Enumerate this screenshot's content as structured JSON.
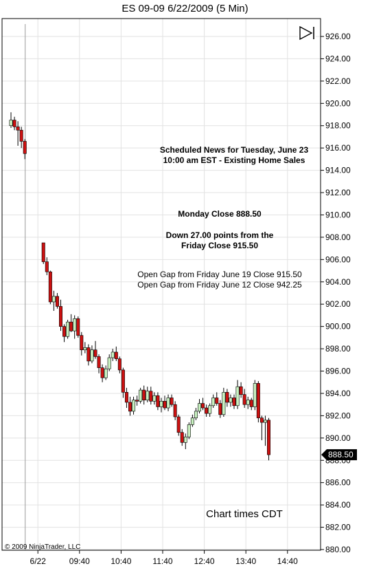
{
  "title": "ES 09-09  6/22/2009 (5 Min)",
  "copyright": "© 2009 NinjaTrader, LLC",
  "chart_times_note": "Chart times CDT",
  "last_price_label": "888.50",
  "annotations": {
    "news_line1": "Scheduled News for Tuesday, June 23",
    "news_line2": "10:00 am EST - Existing Home Sales",
    "monday_close": "Monday Close 888.50",
    "down_line1": "Down 27.00 points from the",
    "down_line2": "Friday Close 915.50",
    "gap_line1": "Open Gap from Friday June 19 Close 915.50",
    "gap_line2": "Open Gap from Friday June 12 Close 942.25"
  },
  "colors": {
    "up_candle": "#c8f0c0",
    "down_candle": "#cc1111",
    "grid": "#e2e2e2",
    "axis": "#000000",
    "price_tag_bg": "#000000",
    "price_tag_text": "#ffffff"
  },
  "chart_data": {
    "type": "candlestick",
    "title": "ES 09-09  6/22/2009 (5 Min)",
    "ylim": [
      880,
      927
    ],
    "yticks": [
      "926.00",
      "924.00",
      "922.00",
      "920.00",
      "918.00",
      "916.00",
      "914.00",
      "912.00",
      "910.00",
      "908.00",
      "906.00",
      "904.00",
      "902.00",
      "900.00",
      "898.00",
      "896.00",
      "894.00",
      "892.00",
      "890.00",
      "888.00",
      "886.00",
      "884.00",
      "882.00",
      "880.00"
    ],
    "xticks": [
      "6/22",
      "09:40",
      "10:40",
      "11:40",
      "12:40",
      "13:40",
      "14:40"
    ],
    "xtick_bar_index": [
      4,
      16,
      28,
      40,
      52,
      64,
      76
    ],
    "grid": true,
    "session_break_bar_index": 4,
    "bars": [
      {
        "o": 918.0,
        "h": 919.2,
        "l": 917.8,
        "c": 918.5
      },
      {
        "o": 918.5,
        "h": 918.8,
        "l": 917.6,
        "c": 917.9
      },
      {
        "o": 917.9,
        "h": 918.4,
        "l": 916.2,
        "c": 917.6
      },
      {
        "o": 917.6,
        "h": 917.9,
        "l": 916.0,
        "c": 916.6
      },
      {
        "o": 916.6,
        "h": 916.8,
        "l": 915.0,
        "c": 915.5
      },
      {
        "o": 907.5,
        "h": 907.5,
        "l": 905.6,
        "c": 905.8
      },
      {
        "o": 905.8,
        "h": 906.2,
        "l": 904.6,
        "c": 904.9
      },
      {
        "o": 904.9,
        "h": 905.0,
        "l": 902.0,
        "c": 902.2
      },
      {
        "o": 902.2,
        "h": 903.2,
        "l": 901.4,
        "c": 902.7
      },
      {
        "o": 902.7,
        "h": 903.0,
        "l": 901.6,
        "c": 901.8
      },
      {
        "o": 901.8,
        "h": 902.4,
        "l": 899.6,
        "c": 900.0
      },
      {
        "o": 900.0,
        "h": 900.2,
        "l": 898.6,
        "c": 899.1
      },
      {
        "o": 899.1,
        "h": 900.6,
        "l": 898.9,
        "c": 900.4
      },
      {
        "o": 900.4,
        "h": 901.1,
        "l": 899.5,
        "c": 899.6
      },
      {
        "o": 899.6,
        "h": 901.0,
        "l": 898.9,
        "c": 900.7
      },
      {
        "o": 900.7,
        "h": 900.9,
        "l": 899.0,
        "c": 899.2
      },
      {
        "o": 899.2,
        "h": 899.5,
        "l": 897.4,
        "c": 897.9
      },
      {
        "o": 897.9,
        "h": 898.6,
        "l": 897.6,
        "c": 898.1
      },
      {
        "o": 898.1,
        "h": 898.4,
        "l": 896.5,
        "c": 896.9
      },
      {
        "o": 896.9,
        "h": 898.3,
        "l": 896.7,
        "c": 897.9
      },
      {
        "o": 897.9,
        "h": 898.7,
        "l": 897.1,
        "c": 897.3
      },
      {
        "o": 897.3,
        "h": 897.5,
        "l": 895.8,
        "c": 896.3
      },
      {
        "o": 896.3,
        "h": 896.6,
        "l": 895.0,
        "c": 895.4
      },
      {
        "o": 895.4,
        "h": 896.5,
        "l": 895.2,
        "c": 896.2
      },
      {
        "o": 896.2,
        "h": 897.5,
        "l": 896.0,
        "c": 897.2
      },
      {
        "o": 897.2,
        "h": 898.0,
        "l": 896.9,
        "c": 897.7
      },
      {
        "o": 897.7,
        "h": 898.2,
        "l": 896.9,
        "c": 897.1
      },
      {
        "o": 897.1,
        "h": 897.3,
        "l": 895.8,
        "c": 896.1
      },
      {
        "o": 896.1,
        "h": 896.3,
        "l": 893.6,
        "c": 894.1
      },
      {
        "o": 894.1,
        "h": 894.5,
        "l": 892.7,
        "c": 893.2
      },
      {
        "o": 893.2,
        "h": 893.7,
        "l": 892.0,
        "c": 892.4
      },
      {
        "o": 892.4,
        "h": 893.7,
        "l": 892.1,
        "c": 893.4
      },
      {
        "o": 893.4,
        "h": 893.8,
        "l": 892.9,
        "c": 893.3
      },
      {
        "o": 893.3,
        "h": 894.5,
        "l": 893.1,
        "c": 894.3
      },
      {
        "o": 894.3,
        "h": 894.7,
        "l": 893.0,
        "c": 893.4
      },
      {
        "o": 893.4,
        "h": 894.6,
        "l": 893.2,
        "c": 894.2
      },
      {
        "o": 894.2,
        "h": 894.6,
        "l": 893.0,
        "c": 893.3
      },
      {
        "o": 893.3,
        "h": 894.1,
        "l": 893.0,
        "c": 893.8
      },
      {
        "o": 893.8,
        "h": 894.1,
        "l": 892.5,
        "c": 892.8
      },
      {
        "o": 892.8,
        "h": 893.6,
        "l": 892.3,
        "c": 893.3
      },
      {
        "o": 893.3,
        "h": 893.8,
        "l": 892.5,
        "c": 892.7
      },
      {
        "o": 892.7,
        "h": 893.9,
        "l": 892.4,
        "c": 893.6
      },
      {
        "o": 893.6,
        "h": 893.9,
        "l": 892.8,
        "c": 893.0
      },
      {
        "o": 893.0,
        "h": 893.3,
        "l": 891.6,
        "c": 891.9
      },
      {
        "o": 891.9,
        "h": 892.1,
        "l": 890.2,
        "c": 890.5
      },
      {
        "o": 890.5,
        "h": 890.8,
        "l": 889.3,
        "c": 889.6
      },
      {
        "o": 889.6,
        "h": 890.4,
        "l": 889.0,
        "c": 890.1
      },
      {
        "o": 890.1,
        "h": 891.4,
        "l": 889.9,
        "c": 891.2
      },
      {
        "o": 891.2,
        "h": 892.1,
        "l": 891.0,
        "c": 891.8
      },
      {
        "o": 891.8,
        "h": 892.7,
        "l": 891.6,
        "c": 892.4
      },
      {
        "o": 892.4,
        "h": 893.5,
        "l": 892.2,
        "c": 893.1
      },
      {
        "o": 893.1,
        "h": 893.6,
        "l": 892.5,
        "c": 892.7
      },
      {
        "o": 892.7,
        "h": 893.0,
        "l": 891.9,
        "c": 892.2
      },
      {
        "o": 892.2,
        "h": 893.1,
        "l": 891.9,
        "c": 892.9
      },
      {
        "o": 892.9,
        "h": 893.9,
        "l": 892.7,
        "c": 893.6
      },
      {
        "o": 893.6,
        "h": 894.1,
        "l": 892.9,
        "c": 893.1
      },
      {
        "o": 893.1,
        "h": 893.4,
        "l": 891.8,
        "c": 892.1
      },
      {
        "o": 892.1,
        "h": 894.5,
        "l": 891.9,
        "c": 894.1
      },
      {
        "o": 894.1,
        "h": 894.4,
        "l": 892.8,
        "c": 893.2
      },
      {
        "o": 893.2,
        "h": 893.9,
        "l": 892.8,
        "c": 893.6
      },
      {
        "o": 893.6,
        "h": 893.9,
        "l": 892.6,
        "c": 892.9
      },
      {
        "o": 892.9,
        "h": 895.2,
        "l": 892.6,
        "c": 894.6
      },
      {
        "o": 894.6,
        "h": 895.0,
        "l": 893.6,
        "c": 893.9
      },
      {
        "o": 893.9,
        "h": 894.4,
        "l": 892.7,
        "c": 893.0
      },
      {
        "o": 893.0,
        "h": 893.7,
        "l": 892.6,
        "c": 893.4
      },
      {
        "o": 893.4,
        "h": 893.6,
        "l": 892.5,
        "c": 892.8
      },
      {
        "o": 892.8,
        "h": 895.2,
        "l": 892.5,
        "c": 894.9
      },
      {
        "o": 894.9,
        "h": 895.1,
        "l": 891.4,
        "c": 891.8
      },
      {
        "o": 891.8,
        "h": 892.0,
        "l": 889.8,
        "c": 891.4
      },
      {
        "o": 891.4,
        "h": 892.0,
        "l": 889.3,
        "c": 891.6
      },
      {
        "o": 891.6,
        "h": 891.8,
        "l": 888.0,
        "c": 888.5
      }
    ]
  }
}
